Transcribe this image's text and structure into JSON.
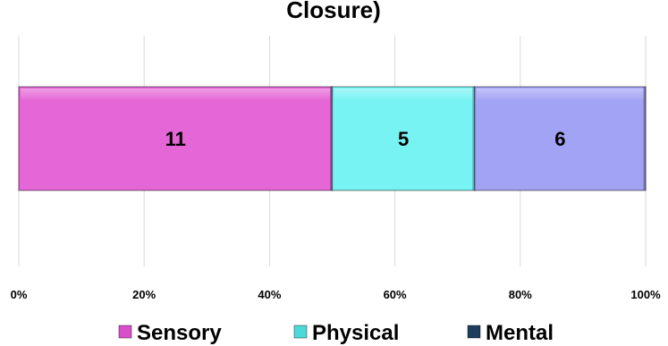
{
  "chart_data": {
    "type": "bar",
    "orientation": "horizontal",
    "stacked": "100%",
    "title": "Closure)",
    "categories": [
      ""
    ],
    "series": [
      {
        "name": "Sensory",
        "values": [
          11
        ],
        "color": "#e566d6"
      },
      {
        "name": "Physical",
        "values": [
          5
        ],
        "color": "#77f3f3"
      },
      {
        "name": "Mental",
        "values": [
          6
        ],
        "color": "#a3a3f5"
      }
    ],
    "legend_swatch_colors": [
      "#d94ec9",
      "#4ed9d9",
      "#1f3d5c"
    ],
    "data_labels": [
      "11",
      "5",
      "6"
    ],
    "xlim": [
      0,
      100
    ],
    "x_tick_labels": [
      "0%",
      "20%",
      "40%",
      "60%",
      "80%",
      "100%"
    ],
    "grid": "vertical",
    "legend_position": "bottom"
  }
}
